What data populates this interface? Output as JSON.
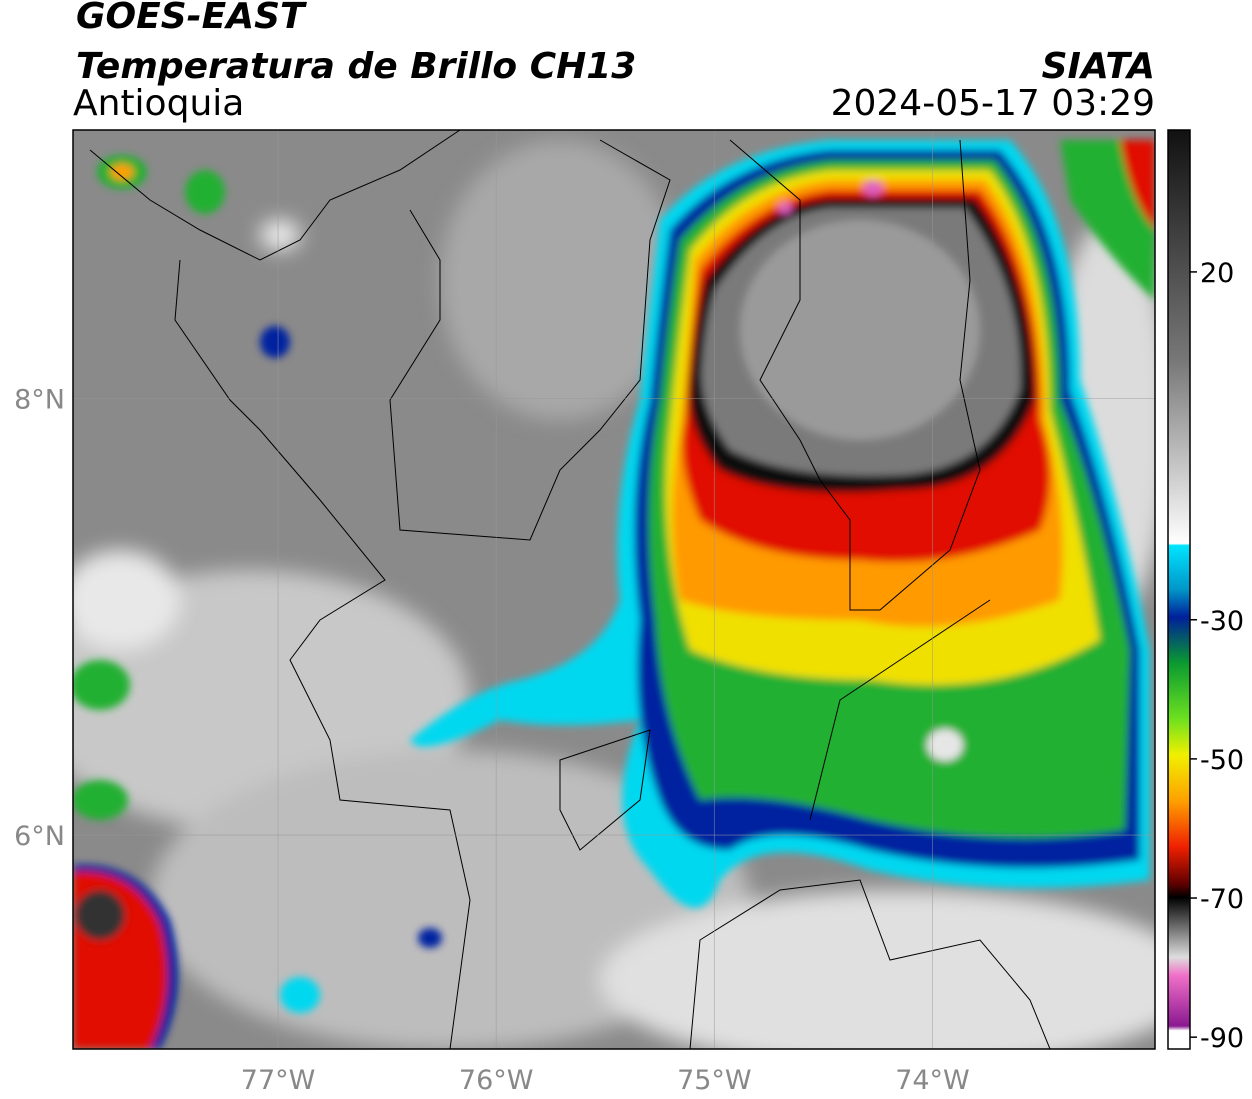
{
  "header": {
    "title": "GOES-EAST",
    "subtitle": "Temperatura de Brillo CH13",
    "region": "Antioquia",
    "source": "SIATA",
    "datetime": "2024-05-17 03:29"
  },
  "map": {
    "lonlim": [
      -77.94,
      -72.98
    ],
    "latlim": [
      5.02,
      9.23
    ],
    "lon_ticks": [
      {
        "value": -77,
        "label": "77°W"
      },
      {
        "value": -76,
        "label": "76°W"
      },
      {
        "value": -75,
        "label": "75°W"
      },
      {
        "value": -74,
        "label": "74°W"
      }
    ],
    "lat_ticks": [
      {
        "value": 8,
        "label": "8°N"
      },
      {
        "value": 6,
        "label": "6°N"
      }
    ]
  },
  "colorbar": {
    "lim": [
      -91.7,
      40.4
    ],
    "ticks": [
      20,
      -30,
      -50,
      -70,
      -90
    ]
  }
}
